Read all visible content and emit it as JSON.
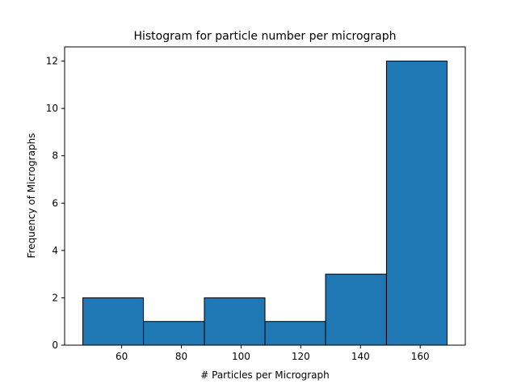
{
  "chart_data": {
    "type": "bar",
    "title": "Histogram for particle number per micrograph",
    "xlabel": "# Particles per Micrograph",
    "ylabel": "Frequency of Micrographs",
    "bins": [
      {
        "start": 47.0,
        "end": 67.3,
        "count": 2
      },
      {
        "start": 67.3,
        "end": 87.7,
        "count": 1
      },
      {
        "start": 87.7,
        "end": 108.0,
        "count": 2
      },
      {
        "start": 108.0,
        "end": 128.3,
        "count": 1
      },
      {
        "start": 128.3,
        "end": 148.7,
        "count": 3
      },
      {
        "start": 148.7,
        "end": 169.0,
        "count": 12
      }
    ],
    "xlim": [
      40.9,
      175.1
    ],
    "ylim": [
      0,
      12.6
    ],
    "xticks": [
      60,
      80,
      100,
      120,
      140,
      160
    ],
    "yticks": [
      0,
      2,
      4,
      6,
      8,
      10,
      12
    ],
    "grid": false,
    "bar_color": "#1f77b4",
    "edge_color": "#000000"
  }
}
